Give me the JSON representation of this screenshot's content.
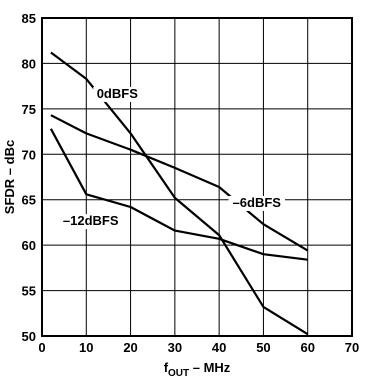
{
  "chart_data": {
    "type": "line",
    "xlabel": {
      "main": "f",
      "sub": "OUT",
      "rest": " – MHz"
    },
    "ylabel": "SFDR – dBc",
    "xlim": [
      0,
      70
    ],
    "ylim": [
      50,
      85
    ],
    "x_ticks": [
      0,
      10,
      20,
      30,
      40,
      50,
      60,
      70
    ],
    "y_ticks": [
      50,
      55,
      60,
      65,
      70,
      75,
      80,
      85
    ],
    "grid": true,
    "series": [
      {
        "name": "0dBFS",
        "x": [
          2,
          10,
          20,
          30,
          40,
          50,
          60
        ],
        "y": [
          81.2,
          78.3,
          72.3,
          65.2,
          61.1,
          53.2,
          50.2
        ]
      },
      {
        "name": "–6dBFS",
        "x": [
          2,
          10,
          20,
          30,
          40,
          50,
          60
        ],
        "y": [
          74.3,
          72.3,
          70.5,
          68.5,
          66.4,
          62.3,
          59.4
        ]
      },
      {
        "name": "–12dBFS",
        "x": [
          2,
          10,
          20,
          30,
          40,
          50,
          60
        ],
        "y": [
          72.8,
          65.6,
          64.2,
          61.6,
          60.7,
          59.0,
          58.4
        ]
      }
    ]
  }
}
